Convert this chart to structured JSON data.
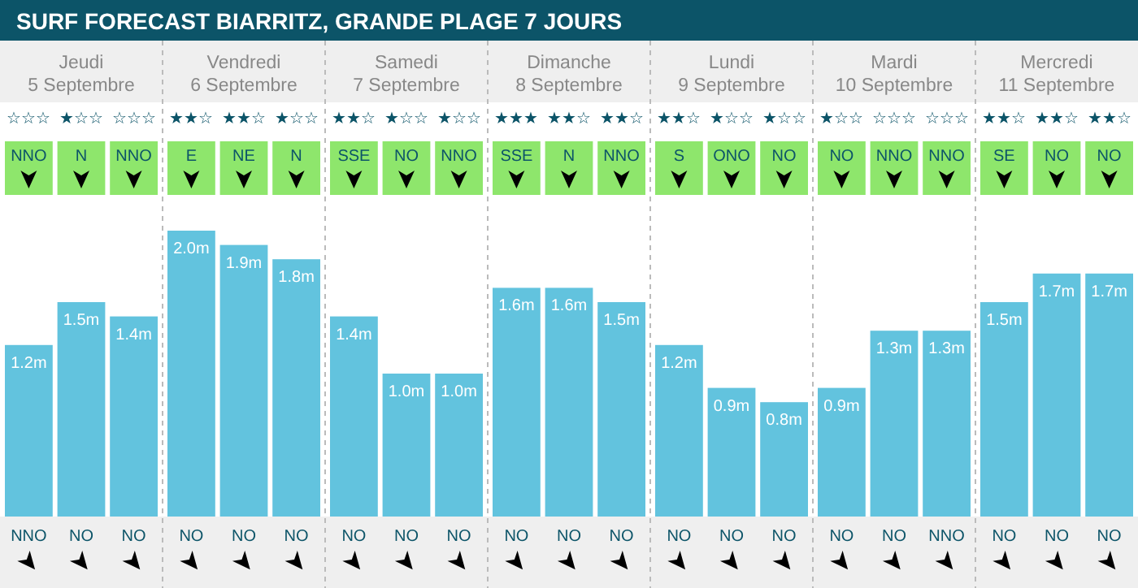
{
  "chart_data": {
    "type": "bar",
    "title": "SURF FORECAST BIARRITZ, GRANDE PLAGE 7 JOURS",
    "categories": [
      "Jeudi\n5 Septembre",
      "Vendredi\n6 Septembre",
      "Samedi\n7 Septembre",
      "Dimanche\n8 Septembre",
      "Lundi\n9 Septembre",
      "Mardi\n10 Septembre",
      "Mercredi\n11 Septembre"
    ],
    "series": [
      {
        "color": "#62c3de",
        "values": [
          1.2,
          2.0,
          1.4,
          1.6,
          1.2,
          0.9,
          1.5
        ],
        "value_labels": [
          "1.2m",
          "2.0m",
          "1.4m",
          "1.6m",
          "1.2m",
          "0.9m",
          "1.5m"
        ]
      },
      {
        "color": "#62c3de",
        "values": [
          1.5,
          1.9,
          1.0,
          1.6,
          0.9,
          1.3,
          1.7
        ],
        "value_labels": [
          "1.5m",
          "1.9m",
          "1.0m",
          "1.6m",
          "0.9m",
          "1.3m",
          "1.7m"
        ]
      },
      {
        "color": "#62c3de",
        "values": [
          1.4,
          1.8,
          1.0,
          1.5,
          0.8,
          1.3,
          1.7
        ],
        "value_labels": [
          "1.4m",
          "1.8m",
          "1.0m",
          "1.5m",
          "0.8m",
          "1.3m",
          "1.7m"
        ]
      }
    ],
    "annotations": [
      "☆☆☆",
      "★☆☆",
      "☆☆☆",
      "★★☆",
      "★★☆",
      "★☆☆",
      "★★☆",
      "★☆☆",
      "★☆☆",
      "★★★",
      "★★☆",
      "★★☆",
      "★★☆",
      "★☆☆",
      "★☆☆",
      "★☆☆",
      "☆☆☆",
      "☆☆☆",
      "★★☆",
      "★★☆",
      "★★☆",
      "NNO",
      "N",
      "NNO",
      "E",
      "NE",
      "N",
      "SSE",
      "NO",
      "NNO",
      "SSE",
      "N",
      "NNO",
      "S",
      "ONO",
      "NO",
      "NO",
      "NNO",
      "NNO",
      "SE",
      "NO",
      "NO",
      "NNO",
      "NO",
      "NO",
      "NO",
      "NO",
      "NO",
      "NO",
      "NO",
      "NO",
      "NO",
      "NO",
      "NO",
      "NO",
      "NO",
      "NO",
      "NO",
      "NO",
      "NNO",
      "NO",
      "NO",
      "NO"
    ]
  }
}
